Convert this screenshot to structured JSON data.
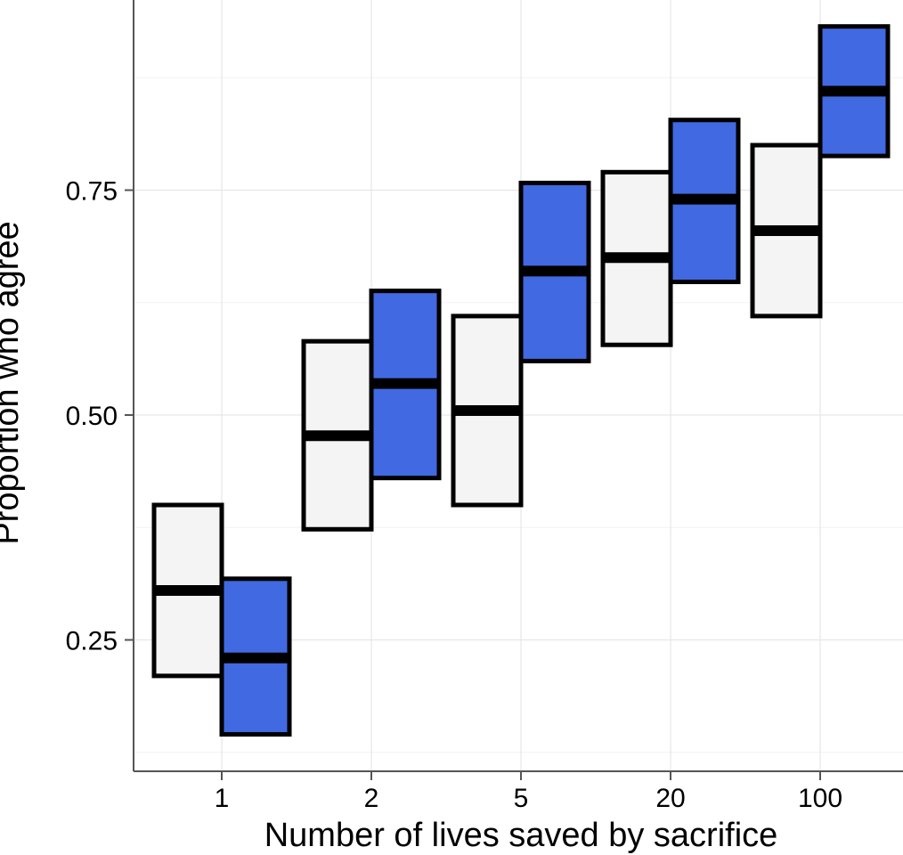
{
  "chart_data": {
    "type": "crossbar",
    "xlabel": "Number of lives saved by sacrifice",
    "ylabel": "Proportion who agree",
    "categories": [
      "1",
      "2",
      "5",
      "20",
      "100"
    ],
    "yticks": [
      0.25,
      0.5,
      0.75
    ],
    "ytick_labels": [
      "0.25",
      "0.50",
      "0.75"
    ],
    "ylim": [
      0.1,
      0.96
    ],
    "grid": true,
    "series": [
      {
        "color": "#f4f4f4",
        "values": [
          {
            "mid": 0.305,
            "lo": 0.21,
            "hi": 0.4
          },
          {
            "mid": 0.477,
            "lo": 0.373,
            "hi": 0.582
          },
          {
            "mid": 0.505,
            "lo": 0.4,
            "hi": 0.61
          },
          {
            "mid": 0.675,
            "lo": 0.578,
            "hi": 0.77
          },
          {
            "mid": 0.705,
            "lo": 0.61,
            "hi": 0.8
          }
        ]
      },
      {
        "color": "#4169e1",
        "values": [
          {
            "mid": 0.23,
            "lo": 0.145,
            "hi": 0.318
          },
          {
            "mid": 0.535,
            "lo": 0.43,
            "hi": 0.638
          },
          {
            "mid": 0.66,
            "lo": 0.56,
            "hi": 0.758
          },
          {
            "mid": 0.74,
            "lo": 0.648,
            "hi": 0.828
          },
          {
            "mid": 0.86,
            "lo": 0.788,
            "hi": 0.932
          }
        ]
      }
    ]
  }
}
